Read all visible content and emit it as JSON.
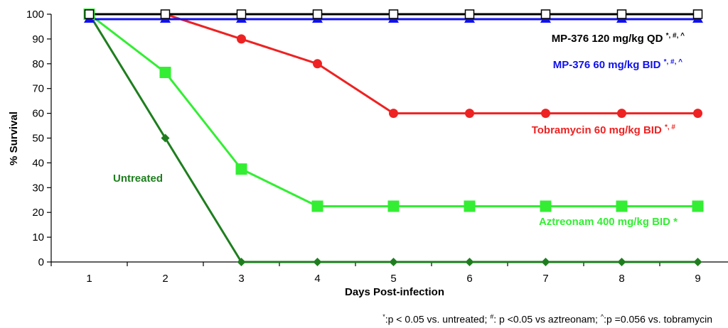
{
  "chart_data": {
    "type": "line",
    "title": "",
    "xlabel": "Days Post-infection",
    "ylabel": "% Survival",
    "x": [
      1,
      2,
      3,
      4,
      5,
      6,
      7,
      8,
      9
    ],
    "xlim": [
      0.5,
      9.5
    ],
    "ylim": [
      0,
      100
    ],
    "y_ticks": [
      0,
      10,
      20,
      30,
      40,
      50,
      60,
      70,
      80,
      90,
      100
    ],
    "grid": false,
    "legend": "none",
    "series": [
      {
        "name": "Untreated",
        "values": [
          100,
          50,
          0,
          0,
          0,
          0,
          0,
          0,
          0
        ],
        "color": "#1e7e1e",
        "marker": "diamond"
      },
      {
        "name": "Aztreonam 400 mg/kg BID",
        "superscript": "*",
        "values": [
          100,
          76.5,
          37.5,
          22.5,
          22.5,
          22.5,
          22.5,
          22.5,
          22.5
        ],
        "color": "#33ee33",
        "marker": "square"
      },
      {
        "name": "Tobramycin 60 mg/kg BID",
        "superscript": "*, #",
        "values": [
          100,
          100,
          90,
          80,
          60,
          60,
          60,
          60,
          60
        ],
        "color": "#ee2222",
        "marker": "circle"
      },
      {
        "name": "MP-376 60 mg/kg BID",
        "superscript": "*, #, ^",
        "values": [
          98,
          98,
          98,
          98,
          98,
          98,
          98,
          98,
          98
        ],
        "color": "#1111ee",
        "marker": "triangle"
      },
      {
        "name": "MP-376 120 mg/kg QD",
        "superscript": "*, #, ^",
        "values": [
          100,
          100,
          100,
          100,
          100,
          100,
          100,
          100,
          100
        ],
        "color": "#000000",
        "marker": "open-square"
      }
    ]
  },
  "footnote": {
    "part1_mark": "*",
    "part1": ":p < 0.05 vs. untreated; ",
    "part2_mark": "#",
    "part2": ": p <0.05 vs aztreonam; ",
    "part3_mark": "^",
    "part3": ":p =0.056 vs. tobramycin"
  }
}
